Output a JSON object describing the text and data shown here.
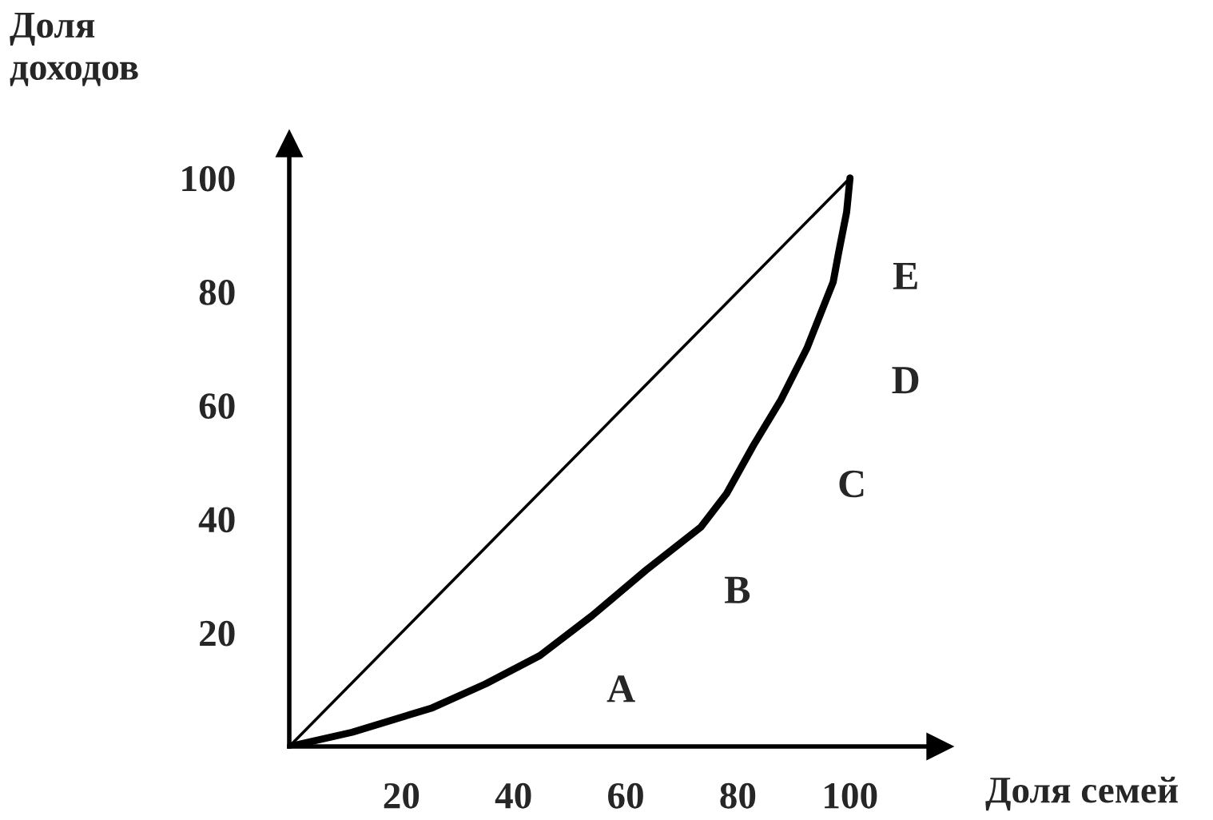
{
  "chart_data": {
    "type": "line",
    "xlabel": "Доля семей",
    "ylabel": "Доля\nдоходов",
    "xlim": [
      0,
      116
    ],
    "ylim": [
      0,
      106
    ],
    "xticks": [
      20,
      40,
      60,
      80,
      100
    ],
    "yticks": [
      20,
      40,
      60,
      80,
      100
    ],
    "grid": false,
    "legend": false,
    "marker": "none",
    "line_style": "solid",
    "series": [
      {
        "color": "#000000",
        "x": [
          0,
          100
        ],
        "values": [
          0,
          100
        ]
      },
      {
        "color": "#000000",
        "x": [
          0,
          11.2,
          25.5,
          35,
          44.7,
          54,
          63.6,
          73.4,
          78,
          82.8,
          87.7,
          92.3,
          94.3,
          97,
          98,
          99.4,
          100
        ],
        "values": [
          0,
          2.5,
          6.8,
          11,
          16,
          23,
          31,
          38.6,
          44.5,
          53,
          61,
          70,
          75,
          81.7,
          87,
          94,
          100
        ]
      }
    ],
    "annotations": [
      "A",
      "B",
      "C",
      "D",
      "E"
    ]
  }
}
